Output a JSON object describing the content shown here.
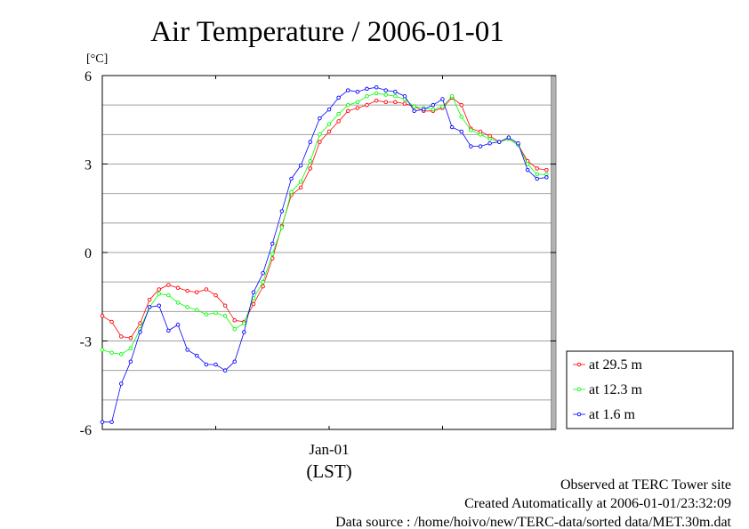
{
  "chart_data": {
    "type": "line",
    "title": "Air Temperature / 2006-01-01",
    "ylabel": "[°C]",
    "ylim": [
      -6,
      6
    ],
    "y_ticks": [
      6,
      3,
      0,
      -3,
      -6
    ],
    "x_tick_label": "Jan-01",
    "xlabel": "(LST)",
    "grid": true,
    "legend_position": "right",
    "x": [
      0.0,
      0.5,
      1.0,
      1.5,
      2.0,
      2.5,
      3.0,
      3.5,
      4.0,
      4.5,
      5.0,
      5.5,
      6.0,
      6.5,
      7.0,
      7.5,
      8.0,
      8.5,
      9.0,
      9.5,
      10.0,
      10.5,
      11.0,
      11.5,
      12.0,
      12.5,
      13.0,
      13.5,
      14.0,
      14.5,
      15.0,
      15.5,
      16.0,
      16.5,
      17.0,
      17.5,
      18.0,
      18.5,
      19.0,
      19.5,
      20.0,
      20.5,
      21.0,
      21.5,
      22.0,
      22.5,
      23.0,
      23.5
    ],
    "series": [
      {
        "name": "at 29.5 m",
        "color": "#ff0000",
        "values": [
          -2.15,
          -2.35,
          -2.85,
          -2.9,
          -2.4,
          -1.6,
          -1.25,
          -1.1,
          -1.2,
          -1.3,
          -1.35,
          -1.25,
          -1.45,
          -1.8,
          -2.3,
          -2.35,
          -1.75,
          -1.15,
          -0.2,
          0.9,
          1.95,
          2.2,
          2.85,
          3.75,
          4.1,
          4.45,
          4.8,
          4.9,
          5.0,
          5.15,
          5.1,
          5.1,
          5.05,
          4.95,
          4.8,
          4.8,
          4.9,
          5.25,
          5.0,
          4.2,
          4.1,
          3.95,
          3.75,
          3.85,
          3.65,
          3.1,
          2.85,
          2.8
        ]
      },
      {
        "name": "at 12.3 m",
        "color": "#00ff00",
        "values": [
          -3.3,
          -3.4,
          -3.45,
          -3.25,
          -2.6,
          -1.85,
          -1.4,
          -1.45,
          -1.7,
          -1.85,
          -1.95,
          -2.1,
          -2.05,
          -2.15,
          -2.6,
          -2.4,
          -1.55,
          -1.0,
          -0.05,
          0.85,
          2.05,
          2.4,
          3.1,
          4.0,
          4.35,
          4.7,
          5.0,
          5.1,
          5.3,
          5.4,
          5.35,
          5.3,
          5.2,
          4.95,
          4.9,
          4.85,
          4.95,
          5.3,
          4.6,
          4.15,
          4.0,
          3.85,
          3.75,
          3.85,
          3.65,
          3.0,
          2.65,
          2.65
        ]
      },
      {
        "name": "at 1.6 m",
        "color": "#0000ff",
        "values": [
          -5.75,
          -5.75,
          -4.45,
          -3.7,
          -2.7,
          -1.85,
          -1.8,
          -2.65,
          -2.45,
          -3.3,
          -3.5,
          -3.8,
          -3.8,
          -4.0,
          -3.7,
          -2.7,
          -1.35,
          -0.7,
          0.3,
          1.4,
          2.5,
          2.95,
          3.75,
          4.55,
          4.85,
          5.25,
          5.5,
          5.45,
          5.55,
          5.6,
          5.5,
          5.45,
          5.3,
          4.8,
          4.85,
          5.0,
          5.2,
          4.25,
          4.1,
          3.6,
          3.6,
          3.7,
          3.75,
          3.9,
          3.7,
          2.8,
          2.5,
          2.55
        ]
      }
    ]
  },
  "footer": {
    "line1": "Observed at TERC Tower site",
    "line2": "Created Automatically at 2006-01-01/23:32:09",
    "line3": "Data source : /home/hoivo/new/TERC-data/sorted  data/MET.30m.dat"
  }
}
